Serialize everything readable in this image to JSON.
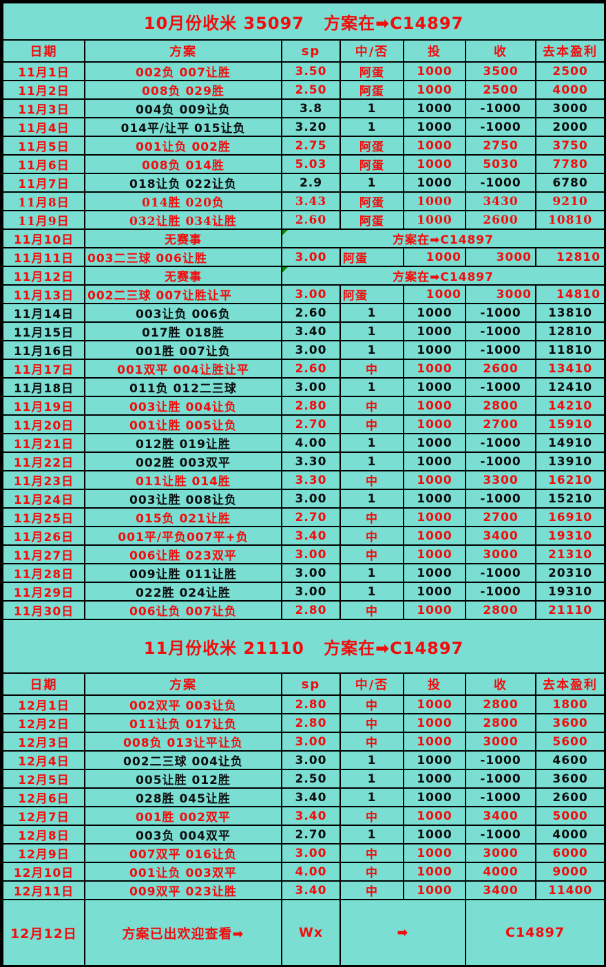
{
  "colors": {
    "background": "#7ADED3",
    "border": "#000000",
    "win_text": "#F20C0C",
    "lose_text": "#0D0D0D",
    "corner_marker": "#0E8A0E"
  },
  "table": {
    "columns": [
      {
        "key": "date",
        "label": "日期"
      },
      {
        "key": "plan",
        "label": "方案"
      },
      {
        "key": "sp",
        "label": "sp"
      },
      {
        "key": "result",
        "label": "中/否"
      },
      {
        "key": "stake",
        "label": "投"
      },
      {
        "key": "take",
        "label": "收"
      },
      {
        "key": "profit",
        "label": "去本盈利"
      }
    ],
    "sections": [
      {
        "banner": "10月份收米 35097   方案在➡C14897",
        "rows": [
          {
            "date": "11月1日",
            "plan": "002负 007让胜",
            "sp": "3.50",
            "result": "阿蛋",
            "stake": "1000",
            "take": "3500",
            "profit": "2500",
            "win": true
          },
          {
            "date": "11月2日",
            "plan": "008负 029胜",
            "sp": "2.50",
            "result": "阿蛋",
            "stake": "1000",
            "take": "2500",
            "profit": "4000",
            "win": true
          },
          {
            "date": "11月3日",
            "plan": "004负 009让负",
            "sp": "3.8",
            "result": "1",
            "stake": "1000",
            "take": "-1000",
            "profit": "3000",
            "win": false
          },
          {
            "date": "11月4日",
            "plan": "014平/让平 015让负",
            "sp": "3.20",
            "result": "1",
            "stake": "1000",
            "take": "-1000",
            "profit": "2000",
            "win": false
          },
          {
            "date": "11月5日",
            "plan": "001让负 002胜",
            "sp": "2.75",
            "result": "阿蛋",
            "stake": "1000",
            "take": "2750",
            "profit": "3750",
            "win": true
          },
          {
            "date": "11月6日",
            "plan": "008负 014胜",
            "sp": "5.03",
            "result": "阿蛋",
            "stake": "1000",
            "take": "5030",
            "profit": "7780",
            "win": true
          },
          {
            "date": "11月7日",
            "plan": "018让负 022让负",
            "sp": "2.9",
            "result": "1",
            "stake": "1000",
            "take": "-1000",
            "profit": "6780",
            "win": false
          },
          {
            "date": "11月8日",
            "plan": "014胜 020负",
            "sp": "3.43",
            "result": "阿蛋",
            "stake": "1000",
            "take": "3430",
            "profit": "9210",
            "win": true,
            "serif": true
          },
          {
            "date": "11月9日",
            "plan": "032让胜 034让胜",
            "sp": "2.60",
            "result": "阿蛋",
            "stake": "1000",
            "take": "2600",
            "profit": "10810",
            "win": true,
            "serif": true
          },
          {
            "type": "no-match",
            "date": "11月10日",
            "plan": "无赛事",
            "merged_text": "方案在➡C14897",
            "win": true
          },
          {
            "date": "11月11日",
            "plan": "003二三球 006让胜",
            "sp": "3.00",
            "result": "阿蛋",
            "stake": "1000",
            "take": "3000",
            "profit": "12810",
            "win": true,
            "quirk": true
          },
          {
            "type": "no-match",
            "date": "11月12日",
            "plan": "无赛事",
            "merged_text": "方案在➡C14897",
            "win": true
          },
          {
            "date": "11月13日",
            "plan": "002二三球 007让胜让平",
            "sp": "3.00",
            "result": "阿蛋",
            "stake": "1000",
            "take": "3000",
            "profit": "14810",
            "win": true,
            "quirk": true
          },
          {
            "date": "11月14日",
            "plan": "003让负 006负",
            "sp": "2.60",
            "result": "1",
            "stake": "1000",
            "take": "-1000",
            "profit": "13810",
            "win": false,
            "date_black": true
          },
          {
            "date": "11月15日",
            "plan": "017胜 018胜",
            "sp": "3.40",
            "result": "1",
            "stake": "1000",
            "take": "-1000",
            "profit": "12810",
            "win": false,
            "date_black": true
          },
          {
            "date": "11月16日",
            "plan": "001胜 007让负",
            "sp": "3.00",
            "result": "1",
            "stake": "1000",
            "take": "-1000",
            "profit": "11810",
            "win": false,
            "date_black": true
          },
          {
            "date": "11月17日",
            "plan": "001双平 004让胜让平",
            "sp": "2.60",
            "result": "中",
            "stake": "1000",
            "take": "2600",
            "profit": "13410",
            "win": true
          },
          {
            "date": "11月18日",
            "plan": "011负 012二三球",
            "sp": "3.00",
            "result": "1",
            "stake": "1000",
            "take": "-1000",
            "profit": "12410",
            "win": false,
            "date_black": true
          },
          {
            "date": "11月19日",
            "plan": "003让胜 004让负",
            "sp": "2.80",
            "result": "中",
            "stake": "1000",
            "take": "2800",
            "profit": "14210",
            "win": true
          },
          {
            "date": "11月20日",
            "plan": "001让胜 005让负",
            "sp": "2.70",
            "result": "中",
            "stake": "1000",
            "take": "2700",
            "profit": "15910",
            "win": true
          },
          {
            "date": "11月21日",
            "plan": "012胜 019让胜",
            "sp": "4.00",
            "result": "1",
            "stake": "1000",
            "take": "-1000",
            "profit": "14910",
            "win": false
          },
          {
            "date": "11月22日",
            "plan": "002胜 003双平",
            "sp": "3.30",
            "result": "1",
            "stake": "1000",
            "take": "-1000",
            "profit": "13910",
            "win": false
          },
          {
            "date": "11月23日",
            "plan": "011让胜 014胜",
            "sp": "3.30",
            "result": "中",
            "stake": "1000",
            "take": "3300",
            "profit": "16210",
            "win": true
          },
          {
            "date": "11月24日",
            "plan": "003让胜 008让负",
            "sp": "3.00",
            "result": "1",
            "stake": "1000",
            "take": "-1000",
            "profit": "15210",
            "win": false
          },
          {
            "date": "11月25日",
            "plan": "015负 021让胜",
            "sp": "2.70",
            "result": "中",
            "stake": "1000",
            "take": "2700",
            "profit": "16910",
            "win": true
          },
          {
            "date": "11月26日",
            "plan": "001平/平负007平+负",
            "sp": "3.40",
            "result": "中",
            "stake": "1000",
            "take": "3400",
            "profit": "19310",
            "win": true
          },
          {
            "date": "11月27日",
            "plan": "006让胜 023双平",
            "sp": "3.00",
            "result": "中",
            "stake": "1000",
            "take": "3000",
            "profit": "21310",
            "win": true
          },
          {
            "date": "11月28日",
            "plan": "009让胜 011让胜",
            "sp": "3.00",
            "result": "1",
            "stake": "1000",
            "take": "-1000",
            "profit": "20310",
            "win": false
          },
          {
            "date": "11月29日",
            "plan": "022胜 024让胜",
            "sp": "3.00",
            "result": "1",
            "stake": "1000",
            "take": "-1000",
            "profit": "19310",
            "win": false
          },
          {
            "date": "11月30日",
            "plan": "006让负 007让负",
            "sp": "2.80",
            "result": "中",
            "stake": "1000",
            "take": "2800",
            "profit": "21110",
            "win": true
          }
        ]
      },
      {
        "banner": "11月份收米 21110   方案在➡C14897",
        "rows": [
          {
            "date": "12月1日",
            "plan": "002双平 003让负",
            "sp": "2.80",
            "result": "中",
            "stake": "1000",
            "take": "2800",
            "profit": "1800",
            "win": true
          },
          {
            "date": "12月2日",
            "plan": "011让负 017让负",
            "sp": "2.80",
            "result": "中",
            "stake": "1000",
            "take": "2800",
            "profit": "3600",
            "win": true
          },
          {
            "date": "12月3日",
            "plan": "008负 013让平让负",
            "sp": "3.00",
            "result": "中",
            "stake": "1000",
            "take": "3000",
            "profit": "5600",
            "win": true
          },
          {
            "date": "12月4日",
            "plan": "002二三球 004让负",
            "sp": "3.00",
            "result": "1",
            "stake": "1000",
            "take": "-1000",
            "profit": "4600",
            "win": false
          },
          {
            "date": "12月5日",
            "plan": "005让胜 012胜",
            "sp": "2.50",
            "result": "1",
            "stake": "1000",
            "take": "-1000",
            "profit": "3600",
            "win": false
          },
          {
            "date": "12月6日",
            "plan": "028胜 045让胜",
            "sp": "3.40",
            "result": "1",
            "stake": "1000",
            "take": "-1000",
            "profit": "2600",
            "win": false
          },
          {
            "date": "12月7日",
            "plan": "001胜 002双平",
            "sp": "3.40",
            "result": "中",
            "stake": "1000",
            "take": "3400",
            "profit": "5000",
            "win": true
          },
          {
            "date": "12月8日",
            "plan": "003负 004双平",
            "sp": "2.70",
            "result": "1",
            "stake": "1000",
            "take": "-1000",
            "profit": "4000",
            "win": false
          },
          {
            "date": "12月9日",
            "plan": "007双平 016让负",
            "sp": "3.00",
            "result": "中",
            "stake": "1000",
            "take": "3000",
            "profit": "6000",
            "win": true
          },
          {
            "date": "12月10日",
            "plan": "001让负 003双平",
            "sp": "4.00",
            "result": "中",
            "stake": "1000",
            "take": "4000",
            "profit": "9000",
            "win": true
          },
          {
            "date": "12月11日",
            "plan": "009双平 023让胜",
            "sp": "3.40",
            "result": "中",
            "stake": "1000",
            "take": "3400",
            "profit": "11400",
            "win": true
          },
          {
            "type": "footer",
            "date": "12月12日",
            "plan": "方案已出欢迎查看➡",
            "sp": "Wx",
            "mid": "➡",
            "right": "C14897",
            "win": true
          }
        ]
      }
    ]
  }
}
